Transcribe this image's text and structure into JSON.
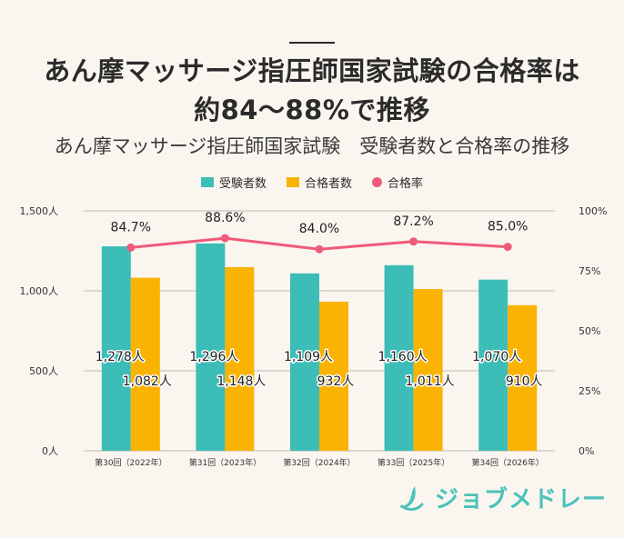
{
  "header": {
    "title_line1": "あん摩マッサージ指圧師国家試験の合格率は",
    "title_line2": "約84～88%で推移",
    "subtitle": "あん摩マッサージ指圧師国家試験　受験者数と合格率の推移"
  },
  "legend": [
    {
      "label": "受験者数",
      "color": "#3cbdb8",
      "shape": "rect"
    },
    {
      "label": "合格者数",
      "color": "#f9b300",
      "shape": "rect"
    },
    {
      "label": "合格率",
      "color": "#ef5a7a",
      "shape": "dot"
    }
  ],
  "logo": {
    "text": "ジョブメドレー",
    "icon": "jobmedley-logo-icon",
    "color": "#4cc2ba"
  },
  "chart_data": {
    "type": "bar",
    "categories": [
      "第30回（2022年）",
      "第31回（2023年）",
      "第32回（2024年）",
      "第33回（2025年）",
      "第34回（2026年）"
    ],
    "series": [
      {
        "name": "受験者数",
        "type": "bar",
        "axis": "left",
        "color": "#3cbdb8",
        "values": [
          1278,
          1296,
          1109,
          1160,
          1070
        ],
        "labels": [
          "1,278人",
          "1,296人",
          "1,109人",
          "1,160人",
          "1,070人"
        ]
      },
      {
        "name": "合格者数",
        "type": "bar",
        "axis": "left",
        "color": "#f9b300",
        "values": [
          1082,
          1148,
          932,
          1011,
          910
        ],
        "labels": [
          "1,082人",
          "1,148人",
          "932人",
          "1,011人",
          "910人"
        ]
      },
      {
        "name": "合格率",
        "type": "line",
        "axis": "right",
        "color": "#ef5a7a",
        "values": [
          84.7,
          88.6,
          84.0,
          87.2,
          85.0
        ],
        "labels": [
          "84.7%",
          "88.6%",
          "84.0%",
          "87.2%",
          "85.0%"
        ]
      }
    ],
    "y_left": {
      "range": [
        0,
        1500
      ],
      "ticks": [
        0,
        500,
        1000,
        1500
      ],
      "tick_labels": [
        "0人",
        "500人",
        "1,000人",
        "1,500人"
      ]
    },
    "y_right": {
      "range": [
        0,
        100
      ],
      "ticks": [
        0,
        25,
        50,
        75,
        100
      ],
      "tick_labels": [
        "0%",
        "25%",
        "50%",
        "75%",
        "100%"
      ]
    },
    "grid": true,
    "legend_position": "top-center"
  }
}
